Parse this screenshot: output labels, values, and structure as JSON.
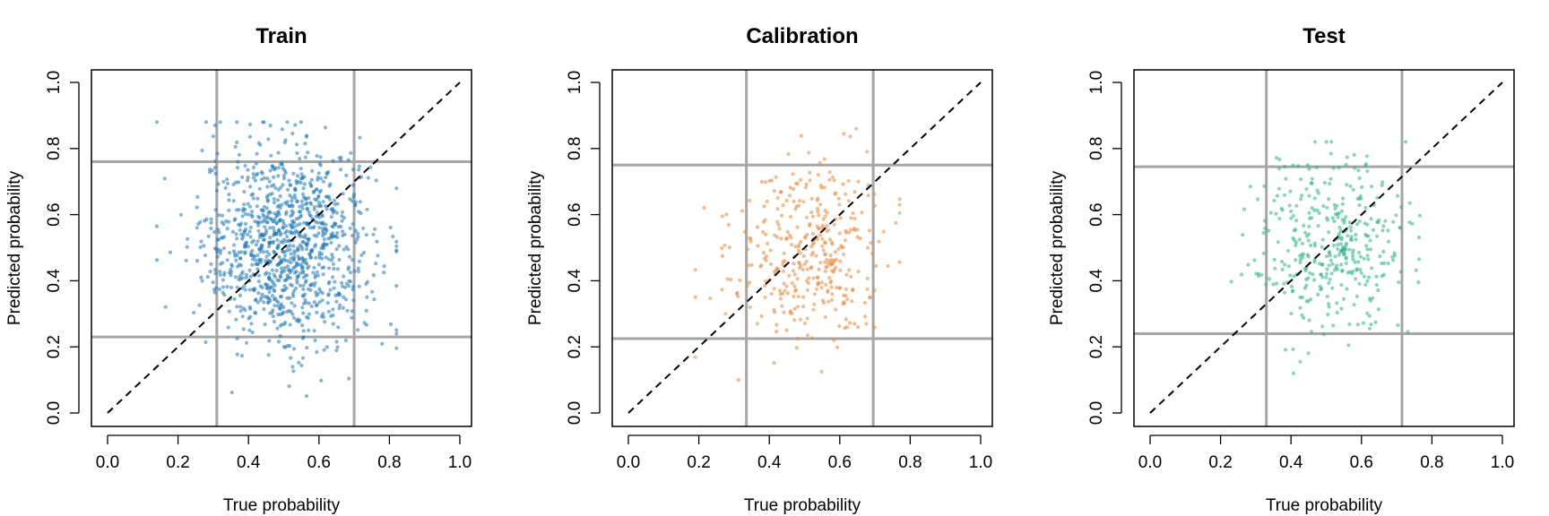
{
  "chart_data": [
    {
      "type": "scatter",
      "title": "Train",
      "xlabel": "True probability",
      "ylabel": "Predicted probability",
      "xlim": [
        0,
        1
      ],
      "ylim": [
        0,
        1
      ],
      "xticks": [
        "0.0",
        "0.2",
        "0.4",
        "0.6",
        "0.8",
        "1.0"
      ],
      "yticks": [
        "0.0",
        "0.2",
        "0.4",
        "0.6",
        "0.8",
        "1.0"
      ],
      "reference_line": {
        "style": "dashed",
        "from": [
          0,
          0
        ],
        "to": [
          1,
          1
        ]
      },
      "vlines": [
        0.31,
        0.7
      ],
      "hlines": [
        0.23,
        0.76
      ],
      "color": "#1f77b4",
      "n_points": 1100,
      "x_dist": {
        "mean": 0.51,
        "sd": 0.12,
        "min": 0.14,
        "max": 0.82
      },
      "y_dist": {
        "mean": 0.51,
        "sd": 0.15,
        "min": 0.05,
        "max": 0.88
      }
    },
    {
      "type": "scatter",
      "title": "Calibration",
      "xlabel": "True probability",
      "ylabel": "Predicted probability",
      "xlim": [
        0,
        1
      ],
      "ylim": [
        0,
        1
      ],
      "xticks": [
        "0.0",
        "0.2",
        "0.4",
        "0.6",
        "0.8",
        "1.0"
      ],
      "yticks": [
        "0.0",
        "0.2",
        "0.4",
        "0.6",
        "0.8",
        "1.0"
      ],
      "reference_line": {
        "style": "dashed",
        "from": [
          0,
          0
        ],
        "to": [
          1,
          1
        ]
      },
      "vlines": [
        0.335,
        0.695
      ],
      "hlines": [
        0.225,
        0.75
      ],
      "color": "#e6863c",
      "n_points": 380,
      "x_dist": {
        "mean": 0.51,
        "sd": 0.11,
        "min": 0.19,
        "max": 0.77
      },
      "y_dist": {
        "mean": 0.49,
        "sd": 0.14,
        "min": 0.1,
        "max": 0.86
      }
    },
    {
      "type": "scatter",
      "title": "Test",
      "xlabel": "True probability",
      "ylabel": "Predicted probability",
      "xlim": [
        0,
        1
      ],
      "ylim": [
        0,
        1
      ],
      "xticks": [
        "0.0",
        "0.2",
        "0.4",
        "0.6",
        "0.8",
        "1.0"
      ],
      "yticks": [
        "0.0",
        "0.2",
        "0.4",
        "0.6",
        "0.8",
        "1.0"
      ],
      "reference_line": {
        "style": "dashed",
        "from": [
          0,
          0
        ],
        "to": [
          1,
          1
        ]
      },
      "vlines": [
        0.33,
        0.715
      ],
      "hlines": [
        0.24,
        0.745
      ],
      "color": "#2eb08a",
      "n_points": 380,
      "x_dist": {
        "mean": 0.52,
        "sd": 0.11,
        "min": 0.17,
        "max": 0.83
      },
      "y_dist": {
        "mean": 0.5,
        "sd": 0.14,
        "min": 0.12,
        "max": 0.82
      }
    }
  ]
}
